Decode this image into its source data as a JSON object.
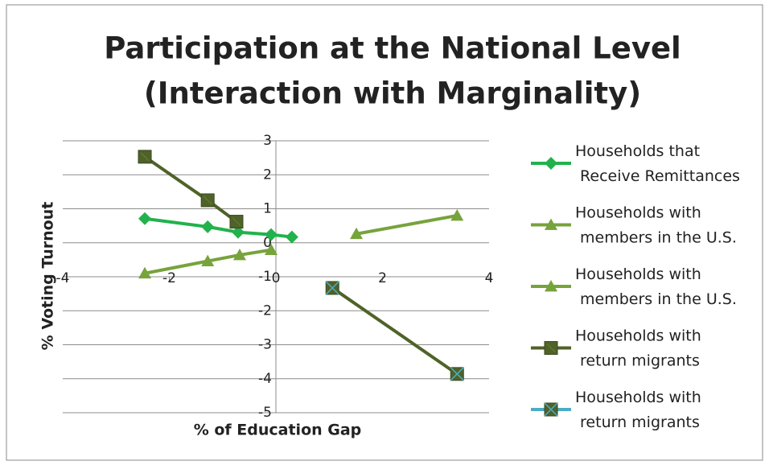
{
  "chart_data": {
    "type": "scatter",
    "title": [
      "Participation at the National Level",
      "(Interaction with Marginality)"
    ],
    "x_label": "% of Education Gap",
    "y_label": "% Voting Turnout",
    "xlim": [
      -4,
      4
    ],
    "xticks": [
      -4,
      -2,
      0,
      2,
      4
    ],
    "ylim": [
      -5,
      3
    ],
    "yticks": [
      -5,
      -4,
      -3,
      -2,
      -1,
      0,
      1,
      2,
      3
    ],
    "grid": true,
    "legend": "right",
    "series": [
      {
        "name": "Households that Receive Remittances",
        "color": "#22b24c",
        "marker": "diamond",
        "x": [
          -2.46,
          -1.28,
          -0.71,
          -0.09,
          0.3
        ],
        "values": [
          0.71,
          0.47,
          0.31,
          0.24,
          0.17
        ]
      },
      {
        "name": "Households with members in the U.S.",
        "color": "#77a33c",
        "marker": "triangle",
        "x": [
          -2.46,
          -1.28,
          -0.68,
          -0.09
        ],
        "values": [
          -0.9,
          -0.54,
          -0.36,
          -0.21
        ]
      },
      {
        "name": "Households with members in the U.S.",
        "color": "#77a33c",
        "marker": "triangle",
        "x": [
          1.51,
          3.4
        ],
        "values": [
          0.26,
          0.8
        ]
      },
      {
        "name": "Households with return migrants",
        "color": "#4f6228",
        "marker": "square",
        "x": [
          -2.46,
          -1.28,
          -0.74
        ],
        "values": [
          2.53,
          1.25,
          0.62
        ]
      },
      {
        "name": "Households with return migrants",
        "color": "#4f6228",
        "marker": "square-x",
        "legend_color": "#4bacc6",
        "x": [
          1.06,
          3.4
        ],
        "values": [
          -1.33,
          -3.86
        ]
      }
    ]
  }
}
